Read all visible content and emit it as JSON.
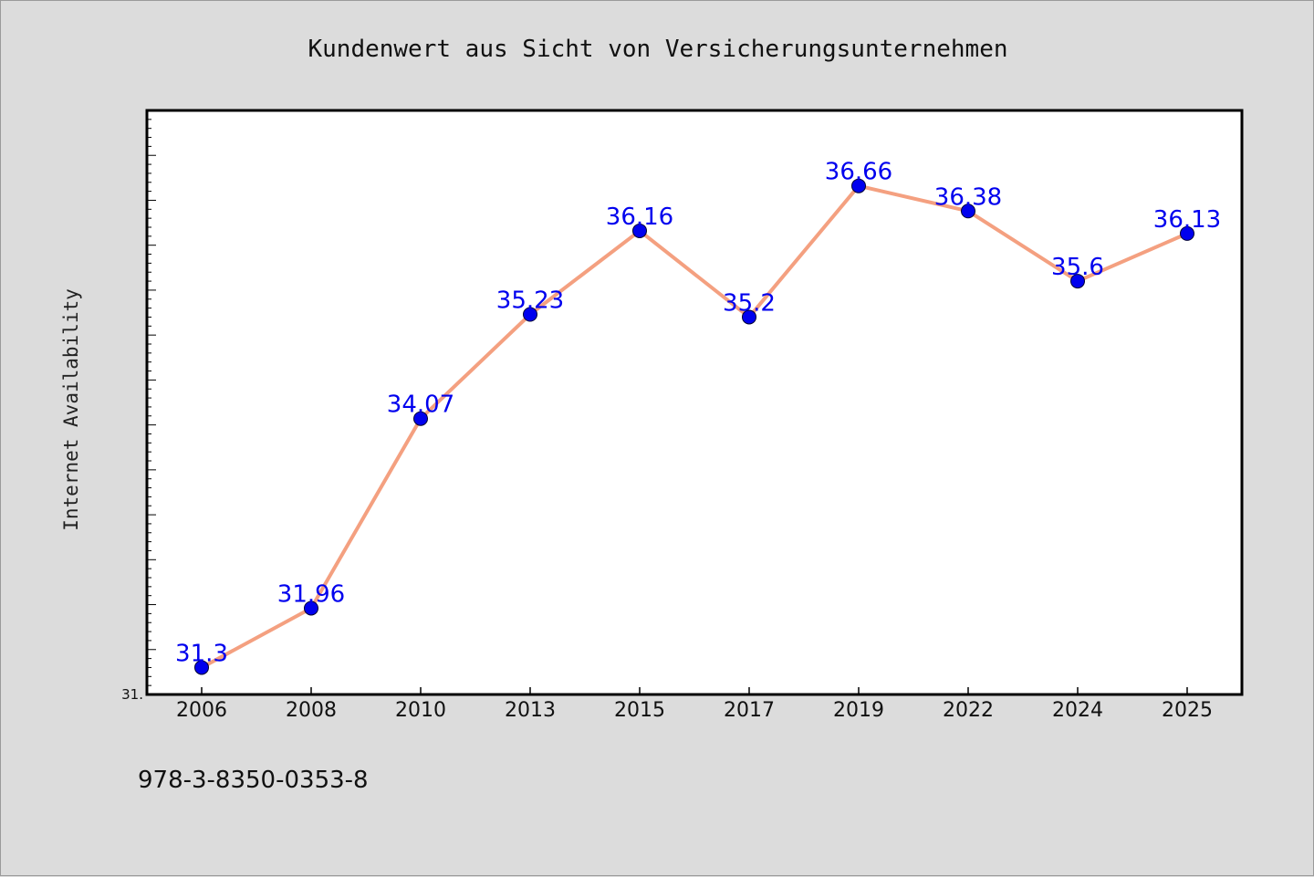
{
  "footnote": "978-3-8350-0353-8",
  "chart_data": {
    "type": "line",
    "title": "Kundenwert aus Sicht von Versicherungsunternehmen",
    "xlabel": "",
    "ylabel": "Internet Availability",
    "categories": [
      "2006",
      "2008",
      "2010",
      "2013",
      "2015",
      "2017",
      "2019",
      "2022",
      "2024",
      "2025"
    ],
    "series": [
      {
        "values": [
          31.3,
          31.96,
          34.07,
          35.23,
          36.16,
          35.2,
          36.66,
          36.38,
          35.6,
          36.13
        ],
        "labels": [
          "31.3",
          "31.96",
          "34.07",
          "35.23",
          "36.16",
          "35.2",
          "36.66",
          "36.38",
          "35.6",
          "36.13"
        ],
        "line_color": "#f4a080",
        "marker_color": "#0000ee"
      }
    ],
    "ylim": [
      31.0,
      37.5
    ],
    "y_tick_label": "31.",
    "grid": false,
    "legend": "none"
  }
}
